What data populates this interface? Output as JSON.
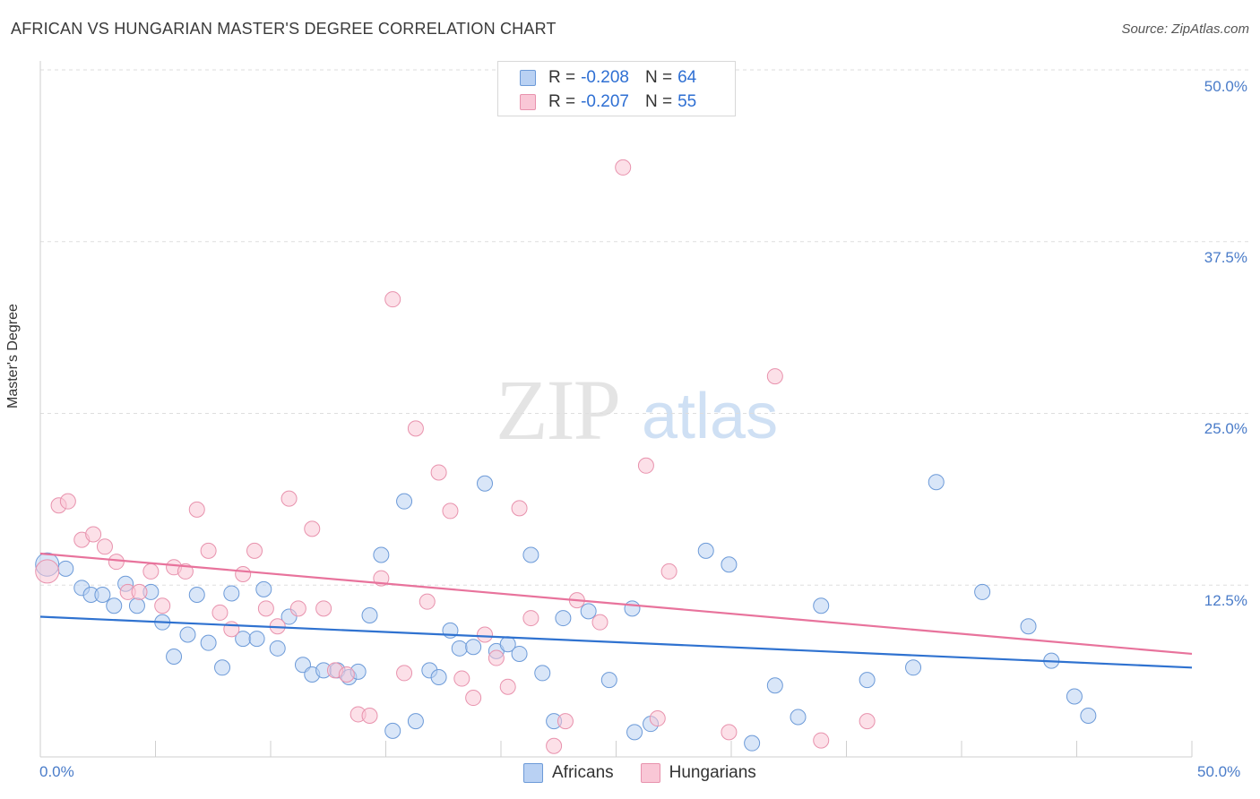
{
  "header": {
    "title": "AFRICAN VS HUNGARIAN MASTER'S DEGREE CORRELATION CHART",
    "source": "Source: ZipAtlas.com"
  },
  "watermark": {
    "zip": "ZIP",
    "atlas": "atlas"
  },
  "legend": {
    "rows": [
      {
        "r_label": "R =",
        "r_value": "-0.208",
        "n_label": "N =",
        "n_value": "64"
      },
      {
        "r_label": "R =",
        "r_value": "-0.207",
        "n_label": "N =",
        "n_value": "55"
      }
    ]
  },
  "bottom_legend": {
    "africans": "Africans",
    "hungarians": "Hungarians"
  },
  "axes": {
    "ylabel": "Master's Degree",
    "y_ticks": [
      "50.0%",
      "37.5%",
      "25.0%",
      "12.5%"
    ],
    "x_ticks": [
      "0.0%",
      "50.0%"
    ]
  },
  "colors": {
    "africans_fill": "#b9d1f3",
    "africans_stroke": "#6c9ad8",
    "africans_line": "#2f72d0",
    "hungarians_fill": "#f9c7d6",
    "hungarians_stroke": "#e892ad",
    "hungarians_line": "#e8739c",
    "tick_text": "#4a7cc9"
  },
  "chart_data": {
    "type": "scatter",
    "title": "AFRICAN VS HUNGARIAN MASTER'S DEGREE CORRELATION CHART",
    "xlabel": "",
    "ylabel": "Master's Degree",
    "xlim": [
      0,
      50
    ],
    "ylim": [
      0,
      50
    ],
    "grid": true,
    "legend_position": "top-center",
    "series": [
      {
        "name": "Africans",
        "trend": {
          "x": [
            0,
            50
          ],
          "y": [
            10.2,
            6.5
          ]
        },
        "points": [
          [
            0.3,
            14.0
          ],
          [
            1.1,
            13.7
          ],
          [
            1.8,
            12.3
          ],
          [
            2.2,
            11.8
          ],
          [
            2.7,
            11.8
          ],
          [
            3.2,
            11.0
          ],
          [
            3.7,
            12.6
          ],
          [
            4.2,
            11.0
          ],
          [
            4.8,
            12.0
          ],
          [
            5.3,
            9.8
          ],
          [
            5.8,
            7.3
          ],
          [
            6.4,
            8.9
          ],
          [
            6.8,
            11.8
          ],
          [
            7.3,
            8.3
          ],
          [
            7.9,
            6.5
          ],
          [
            8.3,
            11.9
          ],
          [
            8.8,
            8.6
          ],
          [
            9.4,
            8.6
          ],
          [
            9.7,
            12.2
          ],
          [
            10.3,
            7.9
          ],
          [
            10.8,
            10.2
          ],
          [
            11.4,
            6.7
          ],
          [
            11.8,
            6.0
          ],
          [
            12.3,
            6.3
          ],
          [
            12.9,
            6.3
          ],
          [
            13.4,
            5.8
          ],
          [
            13.8,
            6.2
          ],
          [
            14.3,
            10.3
          ],
          [
            14.8,
            14.7
          ],
          [
            15.3,
            1.9
          ],
          [
            15.8,
            18.6
          ],
          [
            16.3,
            2.6
          ],
          [
            16.9,
            6.3
          ],
          [
            17.3,
            5.8
          ],
          [
            17.8,
            9.2
          ],
          [
            18.2,
            7.9
          ],
          [
            18.8,
            8.0
          ],
          [
            19.3,
            19.9
          ],
          [
            19.8,
            7.7
          ],
          [
            20.3,
            8.2
          ],
          [
            20.8,
            7.5
          ],
          [
            21.3,
            14.7
          ],
          [
            21.8,
            6.1
          ],
          [
            22.3,
            2.6
          ],
          [
            22.7,
            10.1
          ],
          [
            23.8,
            10.6
          ],
          [
            24.7,
            5.6
          ],
          [
            25.7,
            10.8
          ],
          [
            25.8,
            1.8
          ],
          [
            26.5,
            2.4
          ],
          [
            28.9,
            15.0
          ],
          [
            29.9,
            14.0
          ],
          [
            30.9,
            1.0
          ],
          [
            31.9,
            5.2
          ],
          [
            32.9,
            2.9
          ],
          [
            33.9,
            11.0
          ],
          [
            35.9,
            5.6
          ],
          [
            37.9,
            6.5
          ],
          [
            38.9,
            20.0
          ],
          [
            40.9,
            12.0
          ],
          [
            42.9,
            9.5
          ],
          [
            43.9,
            7.0
          ],
          [
            44.9,
            4.4
          ],
          [
            45.5,
            3.0
          ]
        ]
      },
      {
        "name": "Hungarians",
        "trend": {
          "x": [
            0,
            50
          ],
          "y": [
            14.8,
            7.5
          ]
        },
        "points": [
          [
            0.3,
            13.5
          ],
          [
            0.8,
            18.3
          ],
          [
            1.2,
            18.6
          ],
          [
            1.8,
            15.8
          ],
          [
            2.3,
            16.2
          ],
          [
            2.8,
            15.3
          ],
          [
            3.3,
            14.2
          ],
          [
            3.8,
            12.0
          ],
          [
            4.3,
            12.0
          ],
          [
            4.8,
            13.5
          ],
          [
            5.3,
            11.0
          ],
          [
            5.8,
            13.8
          ],
          [
            6.3,
            13.5
          ],
          [
            6.8,
            18.0
          ],
          [
            7.3,
            15.0
          ],
          [
            7.8,
            10.5
          ],
          [
            8.3,
            9.3
          ],
          [
            8.8,
            13.3
          ],
          [
            9.3,
            15.0
          ],
          [
            9.8,
            10.8
          ],
          [
            10.3,
            9.5
          ],
          [
            10.8,
            18.8
          ],
          [
            11.2,
            10.8
          ],
          [
            11.8,
            16.6
          ],
          [
            12.3,
            10.8
          ],
          [
            12.8,
            6.3
          ],
          [
            13.3,
            6.0
          ],
          [
            13.8,
            3.1
          ],
          [
            14.3,
            3.0
          ],
          [
            14.8,
            13.0
          ],
          [
            15.3,
            33.3
          ],
          [
            15.8,
            6.1
          ],
          [
            16.3,
            23.9
          ],
          [
            16.8,
            11.3
          ],
          [
            17.3,
            20.7
          ],
          [
            17.8,
            17.9
          ],
          [
            18.3,
            5.7
          ],
          [
            18.8,
            4.3
          ],
          [
            19.3,
            8.9
          ],
          [
            19.8,
            7.2
          ],
          [
            20.3,
            5.1
          ],
          [
            20.8,
            18.1
          ],
          [
            21.3,
            10.1
          ],
          [
            22.3,
            0.8
          ],
          [
            22.8,
            2.6
          ],
          [
            23.3,
            11.4
          ],
          [
            24.3,
            9.8
          ],
          [
            25.3,
            42.9
          ],
          [
            26.3,
            21.2
          ],
          [
            26.8,
            2.8
          ],
          [
            27.3,
            13.5
          ],
          [
            29.9,
            1.8
          ],
          [
            31.9,
            27.7
          ],
          [
            33.9,
            1.2
          ],
          [
            35.9,
            2.6
          ]
        ]
      }
    ]
  }
}
